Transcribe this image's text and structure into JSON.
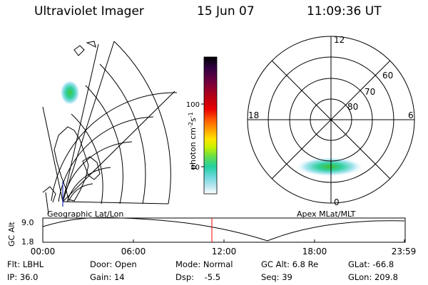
{
  "header": {
    "title": "Ultraviolet Imager",
    "date": "15 Jun 07",
    "time": "11:09:36 UT"
  },
  "geo_panel": {
    "label": "Geographic Lat/Lon"
  },
  "polar_panel": {
    "label": "Apex MLat/MLT",
    "mlt_labels": [
      "12",
      "18",
      "6",
      "0"
    ],
    "mlat_labels": [
      "60",
      "70",
      "80"
    ]
  },
  "colorbar": {
    "unit_label": "photon cm",
    "unit_exp1": "-2",
    "unit_mid": "s",
    "unit_exp2": "-1",
    "ticks": [
      "100",
      "10"
    ],
    "scale": "log",
    "colors": [
      "#000000",
      "#300040",
      "#700040",
      "#b00018",
      "#e80000",
      "#ff5a00",
      "#ffa000",
      "#ffe400",
      "#c8f000",
      "#70e040",
      "#20d0a0",
      "#70d8e0",
      "#c0e8f0",
      "#ffffff"
    ]
  },
  "altitude_plot": {
    "ylabel": "GC Alt",
    "yticks": [
      "9.0",
      "1.8"
    ],
    "xticks": [
      "00:00",
      "06:00",
      "12:00",
      "18:00",
      "23:59"
    ],
    "marker_hour": 11.16,
    "marker_color": "#ff0000"
  },
  "info": {
    "flt": "Flt: LBHL",
    "door": "Door: Open",
    "mode": "Mode: Normal",
    "gc_alt": "GC Alt: 6.8 Re",
    "glat": "GLat: -66.8",
    "ip": "IP: 36.0",
    "gain": "Gain: 14",
    "dsp": "Dsp:    -5.5",
    "seq": "Seq: 39",
    "glon": "GLon: 209.8"
  }
}
